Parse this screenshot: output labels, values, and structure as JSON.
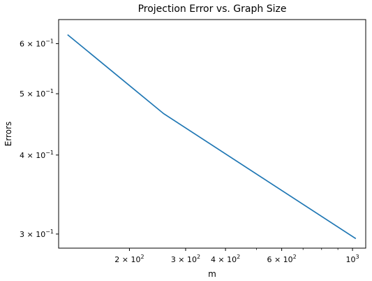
{
  "chart_data": {
    "type": "line",
    "title": "Projection Error vs. Graph Size",
    "xlabel": "m",
    "ylabel": "Errors",
    "xscale": "log",
    "yscale": "log",
    "xlim": [
      120,
      1100
    ],
    "ylim": [
      0.285,
      0.655
    ],
    "grid": false,
    "series": [
      {
        "color": "#1f77b4",
        "x": [
          128,
          256,
          1024
        ],
        "y": [
          0.62,
          0.465,
          0.295
        ]
      }
    ],
    "x_major_ticks": [
      {
        "value": 200,
        "mantissa": "2",
        "base": "10",
        "exp": "2"
      },
      {
        "value": 300,
        "mantissa": "3",
        "base": "10",
        "exp": "2"
      },
      {
        "value": 400,
        "mantissa": "4",
        "base": "10",
        "exp": "2"
      },
      {
        "value": 600,
        "mantissa": "6",
        "base": "10",
        "exp": "2"
      },
      {
        "value": 1000,
        "mantissa": "",
        "base": "10",
        "exp": "3"
      }
    ],
    "x_minor_ticks": [
      500,
      700,
      800,
      900
    ],
    "y_major_ticks": [
      {
        "value": 0.3,
        "mantissa": "3",
        "base": "10",
        "exp": "−1"
      },
      {
        "value": 0.4,
        "mantissa": "4",
        "base": "10",
        "exp": "−1"
      },
      {
        "value": 0.5,
        "mantissa": "5",
        "base": "10",
        "exp": "−1"
      },
      {
        "value": 0.6,
        "mantissa": "6",
        "base": "10",
        "exp": "−1"
      }
    ]
  }
}
